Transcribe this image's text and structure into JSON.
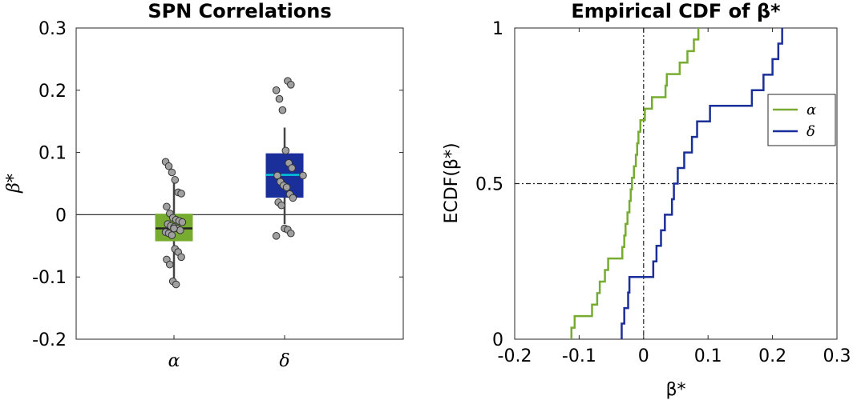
{
  "chart_data": [
    {
      "type": "box",
      "title": "SPN Correlations",
      "ylabel": "β*",
      "ylim": [
        -0.2,
        0.3
      ],
      "yticks": [
        "-0.2",
        "-0.1",
        "0",
        "0.1",
        "0.2",
        "0.3"
      ],
      "categories": [
        "α",
        "δ"
      ],
      "zero_line": true,
      "series": [
        {
          "name": "α",
          "color": "#77ac30",
          "q1": -0.042,
          "median": -0.022,
          "q3": 0.001,
          "mean": -0.022,
          "whisker_low": -0.105,
          "whisker_high": 0.053,
          "points": [
            0.085,
            0.078,
            0.068,
            0.056,
            0.036,
            0.034,
            0.013,
            0.002,
            -0.005,
            -0.008,
            -0.01,
            -0.012,
            -0.015,
            -0.018,
            -0.02,
            -0.022,
            -0.025,
            -0.028,
            -0.03,
            -0.033,
            -0.055,
            -0.06,
            -0.068,
            -0.072,
            -0.08,
            -0.107,
            -0.112
          ]
        },
        {
          "name": "δ",
          "color": "#1a2f99",
          "median_color": "#00c8d8",
          "q1": 0.028,
          "median": 0.064,
          "q3": 0.098,
          "mean": 0.063,
          "whisker_low": -0.015,
          "whisker_high": 0.14,
          "points": [
            0.215,
            0.209,
            0.2,
            0.186,
            0.168,
            0.103,
            0.083,
            0.075,
            0.063,
            0.053,
            0.047,
            0.044,
            0.033,
            0.027,
            0.02,
            0.015,
            -0.022,
            -0.024,
            -0.03,
            -0.034
          ]
        }
      ]
    },
    {
      "type": "line",
      "title": "Empirical CDF of β*",
      "xlabel": "β*",
      "ylabel": "ECDF(β*)",
      "xlim": [
        -0.2,
        0.3
      ],
      "ylim": [
        0,
        1
      ],
      "xticks": [
        "-0.2",
        "-0.1",
        "0",
        "0.1",
        "0.2",
        "0.3"
      ],
      "yticks": [
        "0",
        "0.5",
        "1"
      ],
      "reference_lines": {
        "x": 0,
        "y": 0.5
      },
      "legend_position": "right",
      "series": [
        {
          "name": "α",
          "color": "#77ac30",
          "x": [
            -0.112,
            -0.107,
            -0.08,
            -0.072,
            -0.068,
            -0.06,
            -0.055,
            -0.033,
            -0.03,
            -0.028,
            -0.025,
            -0.022,
            -0.02,
            -0.018,
            -0.015,
            -0.012,
            -0.01,
            -0.008,
            -0.005,
            0.002,
            0.013,
            0.034,
            0.036,
            0.056,
            0.068,
            0.078,
            0.085
          ]
        },
        {
          "name": "δ",
          "color": "#1a2f99",
          "x": [
            -0.034,
            -0.03,
            -0.024,
            -0.022,
            0.015,
            0.02,
            0.027,
            0.033,
            0.044,
            0.047,
            0.053,
            0.063,
            0.075,
            0.083,
            0.103,
            0.168,
            0.186,
            0.2,
            0.209,
            0.215
          ]
        }
      ]
    }
  ]
}
